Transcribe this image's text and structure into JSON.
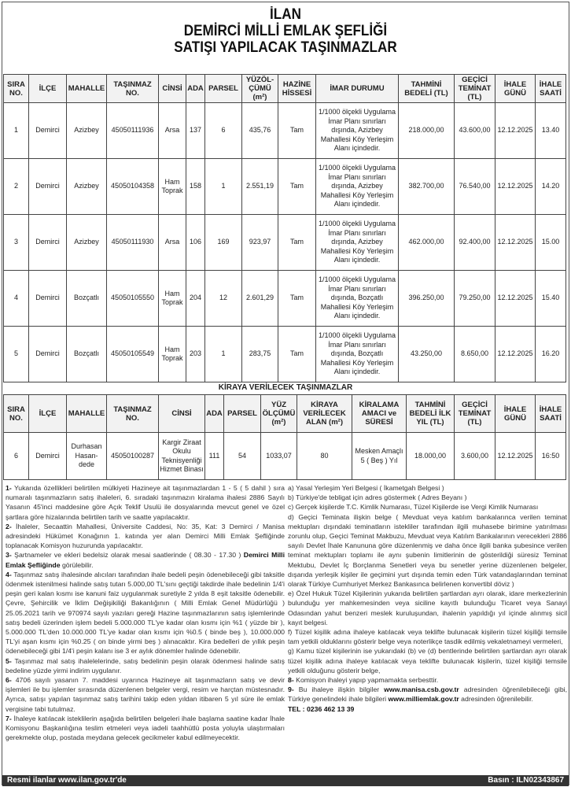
{
  "header": {
    "line1": "İLAN",
    "line2": "DEMİRCİ MİLLİ EMLAK ŞEFLİĞİ",
    "line3": "SATIŞI YAPILACAK TAŞINMAZLAR"
  },
  "sale_table": {
    "headers": [
      "SIRA NO.",
      "İLÇE",
      "MAHALLE",
      "TAŞINMAZ NO.",
      "CİNSİ",
      "ADA",
      "PARSEL",
      "YÜZÖL-ÇÜMÜ (m²)",
      "HAZİNE HİSSESİ",
      "İMAR DURUMU",
      "TAHMİNİ BEDELİ (TL)",
      "GEÇİCİ TEMİNAT (TL)",
      "İHALE GÜNÜ",
      "İHALE SAATİ"
    ],
    "rows": [
      [
        "1",
        "Demirci",
        "Azizbey",
        "45050111936",
        "Arsa",
        "137",
        "6",
        "435,76",
        "Tam",
        "1/1000 ölçekli Uygulama İmar Planı sınırları dışında, Azizbey Mahallesi Köy Yerleşim Alanı içindedir.",
        "218.000,00",
        "43.600,00",
        "12.12.2025",
        "13.40"
      ],
      [
        "2",
        "Demirci",
        "Azizbey",
        "45050104358",
        "Ham Toprak",
        "158",
        "1",
        "2.551,19",
        "Tam",
        "1/1000 ölçekli Uygulama İmar Planı sınırları dışında, Azizbey Mahallesi Köy Yerleşim Alanı içindedir.",
        "382.700,00",
        "76.540,00",
        "12.12.2025",
        "14.20"
      ],
      [
        "3",
        "Demirci",
        "Azizbey",
        "45050111930",
        "Arsa",
        "106",
        "169",
        "923,97",
        "Tam",
        "1/1000 ölçekli Uygulama İmar Planı sınırları dışında, Azizbey Mahallesi Köy Yerleşim Alanı içindedir.",
        "462.000,00",
        "92.400,00",
        "12.12.2025",
        "15.00"
      ],
      [
        "4",
        "Demirci",
        "Bozçatlı",
        "45050105550",
        "Ham Toprak",
        "204",
        "12",
        "2.601,29",
        "Tam",
        "1/1000 ölçekli Uygulama İmar Planı sınırları dışında, Bozçatlı Mahallesi Köy Yerleşim Alanı içindedir.",
        "396.250,00",
        "79.250,00",
        "12.12.2025",
        "15.40"
      ],
      [
        "5",
        "Demirci",
        "Bozçatlı",
        "45050105549",
        "Ham Toprak",
        "203",
        "1",
        "283,75",
        "Tam",
        "1/1000 ölçekli Uygulama İmar Planı sınırları dışında, Bozçatlı Mahallesi Köy Yerleşim Alanı içindedir.",
        "43.250,00",
        "8.650,00",
        "12.12.2025",
        "16.20"
      ]
    ]
  },
  "rent_title": "KİRAYA VERİLECEK TAŞINMAZLAR",
  "rent_table": {
    "headers": [
      "SIRA NO.",
      "İLÇE",
      "MAHALLE",
      "TAŞINMAZ NO.",
      "CİNSİ",
      "ADA",
      "PARSEL",
      "YÜZ ÖLÇÜMÜ (m²)",
      "KİRAYA VERİLECEK ALAN (m²)",
      "KİRALAMA AMACI ve SÜRESİ",
      "TAHMİNİ BEDELİ İLK YIL (TL)",
      "GEÇİCİ TEMİNAT (TL)",
      "İHALE GÜNÜ",
      "İHALE SAATİ"
    ],
    "rows": [
      [
        "6",
        "Demirci",
        "Durhasan Hasan-dede",
        "45050100287",
        "Kargir Ziraat Okulu Teknisyenliği Hizmet Binası",
        "111",
        "54",
        "1033,07",
        "80",
        "Mesken Amaçlı 5 ( Beş ) Yıl",
        "18.000,00",
        "3.600,00",
        "12.12.2025",
        "16:50"
      ]
    ]
  },
  "body": {
    "p1_num": "1-",
    "p1": " Yukarıda özellikleri belirtilen mülkiyeti Hazineye ait taşınmazlardan 1 - 5 ( 5 dahil ) sıra numaralı taşınmazların satış ihaleleri, 6. sıradaki taşınmazın kiralama ihalesi 2886 Sayılı Yasanın 45'inci maddesine göre Açık Teklif Usulü ile dosyalarında mevcut genel ve özel şartlara göre hizalarında belirtilen tarih ve saatte yapılacaktır.",
    "p2_num": "2-",
    "p2": " İhaleler, Secaattin Mahallesi, Üniversite Caddesi, No: 35, Kat: 3 Demirci / Manisa adresindeki Hükümet Konağının 1. katında yer alan Demirci Milli Emlak Şefliğinde toplanacak Komisyon huzurunda yapılacaktır.",
    "p3_num": "3-",
    "p3": " Şartnameler ve ekleri bedelsiz olarak mesai saatlerinde ( 08.30 - 17.30 ) ",
    "p3_bold": "Demirci Milli Emlak Şefliğinde",
    "p3_end": " görülebilir.",
    "p4_num": "4-",
    "p4": " Taşınmaz satış ihalesinde alıcıları tarafından ihale bedeli peşin ödenebileceği gibi taksitle ödenmek istenilmesi halinde satış tutarı 5.000,00 TL'sını geçtiği takdirde ihale bedelinin 1/4'i peşin geri kalan kısmı ise kanuni faiz uygulanmak suretiyle 2 yılda 8 eşit taksitle ödenebilir. Çevre, Şehircilik ve İklim Değişikiliği Bakanlığının ( Milli Emlak Genel Müdürlüğü ) 25.05.2021 tarih ve 970974 sayılı yazıları gereği Hazine taşınmazlarının satış işlemlerinde satış bedeli üzerinden işlem bedeli 5.000.000 TL'ye kadar olan kısmı için %1 ( yüzde bir ), 5.000.000 TL'den 10.000.000 TL'ye kadar olan kısmı için %0.5 ( binde beş ), 10.000.000 TL'yi aşan kısmı için %0.25 ( on binde yirmi beş ) alınacaktır. Kira bedelleri de yıllık peşin ödenebileceği gibi 1/4'i peşin kalanı ise 3 er aylık dönemler halinde ödenebilir.",
    "p5_num": "5-",
    "p5": " Taşınmaz mal satış ihalelelerinde, satış bedelinin peşin olarak ödenmesi halinde satış bedeline yüzde yirmi indirim uygulanır.",
    "p6_num": "6-",
    "p6": " 4706 sayılı yasanın 7. maddesi uyarınca Hazineye ait taşınmazların satış ve devir işlemleri ile bu işlemler sırasında düzenlenen belgeler vergi, resim ve harçtan müstesnadır. Ayrıca, satışı yapılan taşınmaz satış tarihini takip eden yıldan itibaren 5 yıl süre ile emlak vergisine tabi tutulmaz.",
    "p7_num": "7-",
    "p7": " İhaleye katılacak isteklilerin aşağıda belirtilen belgeleri ihale başlama saatine kadar İhale Komisyonu Başkanlığına teslim etmeleri veya iadeli taahhütlü posta yoluyla ulaştırmaları gerekmekte olup, postada meydana gelecek gecikmeler kabul edilmeyecektir.",
    "a": " a) Yasal Yerleşim Yeri Belgesi ( İkametgah Belgesi )",
    "b": " b) Türkiye'de tebligat için adres göstermek ( Adres Beyanı )",
    "c": " c) Gerçek kişilerde T.C. Kimlik Numarası, Tüzel Kişilerde ise Vergi Kimlik Numarası",
    "d": " d) Geçici Teminata ilişkin belge ( Mevduat veya katılım bankalarınca verilen teminat mektupları dışındaki teminatların istekliler tarafından ilgili muhasebe birimine yatırılması zorunlu olup, Geçici Teminat Makbuzu, Mevduat veya Katılım Bankalarının verecekleri 2886 sayılı Devlet İhale Kanununa göre düzenlenmiş ve daha önce ilgili banka şubesince verilen teminat mektupları toplamı ile aynı şubenin limitlerinin de gösterildiği süresiz Teminat Mektubu, Devlet İç Borçlanma Senetleri veya bu senetler yerine düzenlenen belgeler, dışarıda yerleşik kişiler ile geçimini yurt dışında temin eden Türk vatandaşlarından teminat olarak Türkiye Cumhuriyet Merkez Bankasınca belirlenen konvertibl döviz )",
    "e": " e) Özel Hukuk Tüzel Kişilerinin yukarıda belirtilen şartlardan ayrı olarak, idare merkezlerinin bulunduğu yer mahkemesinden veya siciline kayıtlı bulunduğu Ticaret veya Sanayi Odasından yahut benzeri meslek kuruluşundan, ihalenin yapıldığı yıl içinde alınmış sicil kayıt belgesi.",
    "f": " f) Tüzel kişilik adına ihaleye katılacak veya teklifte bulunacak kişilerin tüzel kişiliği temsile tam yetkili olduklarını gösterir belge veya noterlikçe tasdik edilmiş vekaletnameyi vermeleri,",
    "g": " g) Kamu tüzel kişilerinin ise yukarıdaki (b) ve (d) bentlerinde belirtilen şartlardan ayrı olarak tüzel kişilik adına ihaleye katılacak veya teklifte bulunacak kişilerin, tüzel kişiliği temsile yetkili olduğunu gösterir belge,",
    "p8_num": "8-",
    "p8": " Komisyon ihaleyi yapıp yapmamakta serbesttir.",
    "p9_num": "9-",
    "p9a": " Bu ihaleye ilişkin bilgiler ",
    "p9_url1": "www.manisa.csb.gov.tr",
    "p9b": " adresinden öğrenilebileceği gibi, Türkiye genelindeki ihale bilgileri ",
    "p9_url2": "www.milliemlak.gov.tr",
    "p9c": " adresinden öğrenilebilir.",
    "tel": "TEL : 0236 462 13 39"
  },
  "footer": {
    "left": "Resmi ilanlar www.ilan.gov.tr'de",
    "right": "Basın : ILN02343867"
  }
}
